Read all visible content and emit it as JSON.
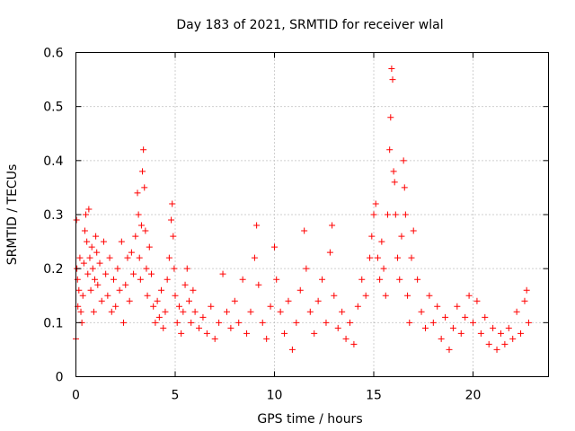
{
  "chart_data": {
    "type": "scatter",
    "title": "Day 183 of 2021, SRMTID for receiver wlal",
    "xlabel": "GPS time / hours",
    "ylabel": "SRMTID / TECUs",
    "xlim": [
      0,
      23.8
    ],
    "ylim": [
      0,
      0.6
    ],
    "xticks": [
      0,
      5,
      10,
      15,
      20
    ],
    "xtick_labels": [
      "0",
      "5",
      "10",
      "15",
      "20"
    ],
    "yticks": [
      0,
      0.1,
      0.2,
      0.3,
      0.4,
      0.5,
      0.6
    ],
    "ytick_labels": [
      "0",
      "0.1",
      "0.2",
      "0.3",
      "0.4",
      "0.5",
      "0.6"
    ],
    "grid": true,
    "marker": "+",
    "color": "#ff0000",
    "series": [
      {
        "name": "wlal",
        "points": [
          [
            0.0,
            0.07
          ],
          [
            0.03,
            0.29
          ],
          [
            0.05,
            0.2
          ],
          [
            0.08,
            0.18
          ],
          [
            0.1,
            0.13
          ],
          [
            0.15,
            0.16
          ],
          [
            0.2,
            0.22
          ],
          [
            0.25,
            0.12
          ],
          [
            0.3,
            0.1
          ],
          [
            0.35,
            0.15
          ],
          [
            0.4,
            0.21
          ],
          [
            0.45,
            0.27
          ],
          [
            0.5,
            0.3
          ],
          [
            0.55,
            0.25
          ],
          [
            0.6,
            0.19
          ],
          [
            0.65,
            0.31
          ],
          [
            0.7,
            0.22
          ],
          [
            0.75,
            0.16
          ],
          [
            0.8,
            0.24
          ],
          [
            0.85,
            0.2
          ],
          [
            0.9,
            0.12
          ],
          [
            0.95,
            0.18
          ],
          [
            1.0,
            0.26
          ],
          [
            1.05,
            0.23
          ],
          [
            1.1,
            0.17
          ],
          [
            1.2,
            0.21
          ],
          [
            1.3,
            0.14
          ],
          [
            1.4,
            0.25
          ],
          [
            1.5,
            0.19
          ],
          [
            1.6,
            0.15
          ],
          [
            1.7,
            0.22
          ],
          [
            1.8,
            0.12
          ],
          [
            1.9,
            0.18
          ],
          [
            2.0,
            0.13
          ],
          [
            2.1,
            0.2
          ],
          [
            2.2,
            0.16
          ],
          [
            2.3,
            0.25
          ],
          [
            2.4,
            0.1
          ],
          [
            2.5,
            0.17
          ],
          [
            2.6,
            0.22
          ],
          [
            2.7,
            0.14
          ],
          [
            2.8,
            0.23
          ],
          [
            2.9,
            0.19
          ],
          [
            3.0,
            0.26
          ],
          [
            3.1,
            0.34
          ],
          [
            3.15,
            0.3
          ],
          [
            3.2,
            0.22
          ],
          [
            3.25,
            0.18
          ],
          [
            3.3,
            0.28
          ],
          [
            3.35,
            0.38
          ],
          [
            3.4,
            0.42
          ],
          [
            3.45,
            0.35
          ],
          [
            3.5,
            0.27
          ],
          [
            3.55,
            0.2
          ],
          [
            3.6,
            0.15
          ],
          [
            3.7,
            0.24
          ],
          [
            3.8,
            0.19
          ],
          [
            3.9,
            0.13
          ],
          [
            4.0,
            0.1
          ],
          [
            4.1,
            0.14
          ],
          [
            4.2,
            0.11
          ],
          [
            4.3,
            0.16
          ],
          [
            4.4,
            0.09
          ],
          [
            4.5,
            0.12
          ],
          [
            4.6,
            0.18
          ],
          [
            4.7,
            0.22
          ],
          [
            4.8,
            0.29
          ],
          [
            4.85,
            0.32
          ],
          [
            4.9,
            0.26
          ],
          [
            4.95,
            0.2
          ],
          [
            5.0,
            0.15
          ],
          [
            5.1,
            0.1
          ],
          [
            5.2,
            0.13
          ],
          [
            5.3,
            0.08
          ],
          [
            5.4,
            0.12
          ],
          [
            5.5,
            0.17
          ],
          [
            5.6,
            0.2
          ],
          [
            5.7,
            0.14
          ],
          [
            5.8,
            0.1
          ],
          [
            5.9,
            0.16
          ],
          [
            6.0,
            0.12
          ],
          [
            6.2,
            0.09
          ],
          [
            6.4,
            0.11
          ],
          [
            6.6,
            0.08
          ],
          [
            6.8,
            0.13
          ],
          [
            7.0,
            0.07
          ],
          [
            7.2,
            0.1
          ],
          [
            7.4,
            0.19
          ],
          [
            7.6,
            0.12
          ],
          [
            7.8,
            0.09
          ],
          [
            8.0,
            0.14
          ],
          [
            8.2,
            0.1
          ],
          [
            8.4,
            0.18
          ],
          [
            8.6,
            0.08
          ],
          [
            8.8,
            0.12
          ],
          [
            9.0,
            0.22
          ],
          [
            9.1,
            0.28
          ],
          [
            9.2,
            0.17
          ],
          [
            9.4,
            0.1
          ],
          [
            9.6,
            0.07
          ],
          [
            9.8,
            0.13
          ],
          [
            10.0,
            0.24
          ],
          [
            10.1,
            0.18
          ],
          [
            10.3,
            0.12
          ],
          [
            10.5,
            0.08
          ],
          [
            10.7,
            0.14
          ],
          [
            10.9,
            0.05
          ],
          [
            11.1,
            0.1
          ],
          [
            11.3,
            0.16
          ],
          [
            11.5,
            0.27
          ],
          [
            11.6,
            0.2
          ],
          [
            11.8,
            0.12
          ],
          [
            12.0,
            0.08
          ],
          [
            12.2,
            0.14
          ],
          [
            12.4,
            0.18
          ],
          [
            12.6,
            0.1
          ],
          [
            12.8,
            0.23
          ],
          [
            12.9,
            0.28
          ],
          [
            13.0,
            0.15
          ],
          [
            13.2,
            0.09
          ],
          [
            13.4,
            0.12
          ],
          [
            13.6,
            0.07
          ],
          [
            13.8,
            0.1
          ],
          [
            14.0,
            0.06
          ],
          [
            14.2,
            0.13
          ],
          [
            14.4,
            0.18
          ],
          [
            14.6,
            0.15
          ],
          [
            14.8,
            0.22
          ],
          [
            14.9,
            0.26
          ],
          [
            15.0,
            0.3
          ],
          [
            15.1,
            0.32
          ],
          [
            15.2,
            0.22
          ],
          [
            15.3,
            0.18
          ],
          [
            15.4,
            0.25
          ],
          [
            15.5,
            0.2
          ],
          [
            15.6,
            0.15
          ],
          [
            15.7,
            0.3
          ],
          [
            15.8,
            0.42
          ],
          [
            15.85,
            0.48
          ],
          [
            15.9,
            0.57
          ],
          [
            15.95,
            0.55
          ],
          [
            16.0,
            0.38
          ],
          [
            16.05,
            0.36
          ],
          [
            16.1,
            0.3
          ],
          [
            16.2,
            0.22
          ],
          [
            16.3,
            0.18
          ],
          [
            16.4,
            0.26
          ],
          [
            16.5,
            0.4
          ],
          [
            16.55,
            0.35
          ],
          [
            16.6,
            0.3
          ],
          [
            16.7,
            0.15
          ],
          [
            16.8,
            0.1
          ],
          [
            16.9,
            0.22
          ],
          [
            17.0,
            0.27
          ],
          [
            17.2,
            0.18
          ],
          [
            17.4,
            0.12
          ],
          [
            17.6,
            0.09
          ],
          [
            17.8,
            0.15
          ],
          [
            18.0,
            0.1
          ],
          [
            18.2,
            0.13
          ],
          [
            18.4,
            0.07
          ],
          [
            18.6,
            0.11
          ],
          [
            18.8,
            0.05
          ],
          [
            19.0,
            0.09
          ],
          [
            19.2,
            0.13
          ],
          [
            19.4,
            0.08
          ],
          [
            19.6,
            0.11
          ],
          [
            19.8,
            0.15
          ],
          [
            20.0,
            0.1
          ],
          [
            20.2,
            0.14
          ],
          [
            20.4,
            0.08
          ],
          [
            20.6,
            0.11
          ],
          [
            20.8,
            0.06
          ],
          [
            21.0,
            0.09
          ],
          [
            21.2,
            0.05
          ],
          [
            21.4,
            0.08
          ],
          [
            21.6,
            0.06
          ],
          [
            21.8,
            0.09
          ],
          [
            22.0,
            0.07
          ],
          [
            22.2,
            0.12
          ],
          [
            22.4,
            0.08
          ],
          [
            22.6,
            0.14
          ],
          [
            22.7,
            0.16
          ],
          [
            22.8,
            0.1
          ]
        ]
      }
    ]
  }
}
